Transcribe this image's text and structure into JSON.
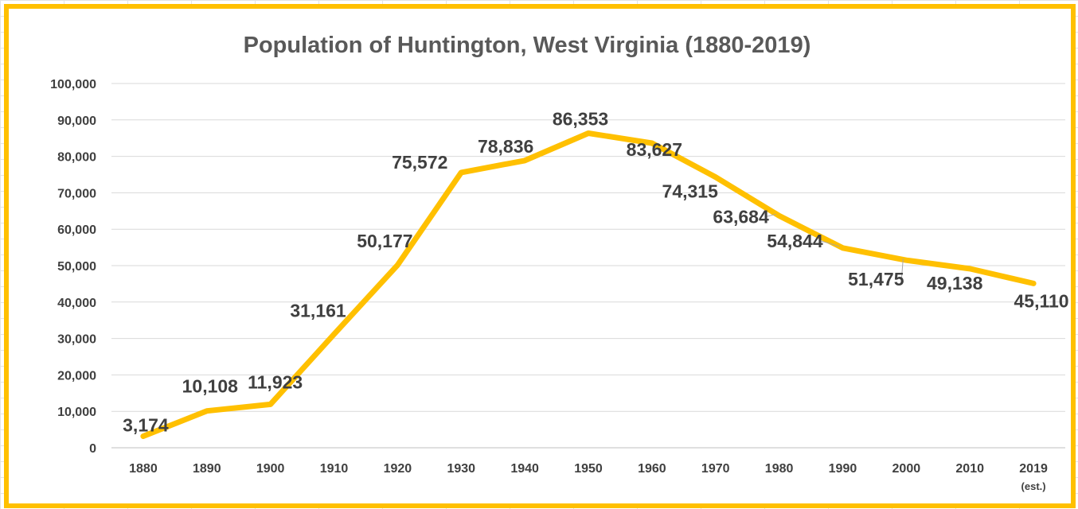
{
  "chart_data": {
    "type": "line",
    "title": "Population of Huntington, West Virginia (1880-2019)",
    "xlabel": "",
    "ylabel": "",
    "categories": [
      "1880",
      "1890",
      "1900",
      "1910",
      "1920",
      "1930",
      "1940",
      "1950",
      "1960",
      "1970",
      "1980",
      "1990",
      "2000",
      "2010",
      "2019"
    ],
    "category_sublabels": [
      "",
      "",
      "",
      "",
      "",
      "",
      "",
      "",
      "",
      "",
      "",
      "",
      "",
      "",
      "(est.)"
    ],
    "y_ticks": [
      "0",
      "10,000",
      "20,000",
      "30,000",
      "40,000",
      "50,000",
      "60,000",
      "70,000",
      "80,000",
      "90,000",
      "100,000"
    ],
    "series": [
      {
        "values": [
          3174,
          10108,
          11923,
          31161,
          50177,
          75572,
          78836,
          86353,
          83627,
          74315,
          63684,
          54844,
          51475,
          49138,
          45110
        ],
        "labels": [
          "3,174",
          "10,108",
          "11,923",
          "31,161",
          "50,177",
          "75,572",
          "78,836",
          "86,353",
          "83,627",
          "74,315",
          "63,684",
          "54,844",
          "51,475",
          "49,138",
          "45,110"
        ],
        "color": "#FFC000"
      }
    ],
    "ylim": [
      0,
      100000
    ],
    "grid": true,
    "legend": "none",
    "border_color": "#FFC000"
  }
}
